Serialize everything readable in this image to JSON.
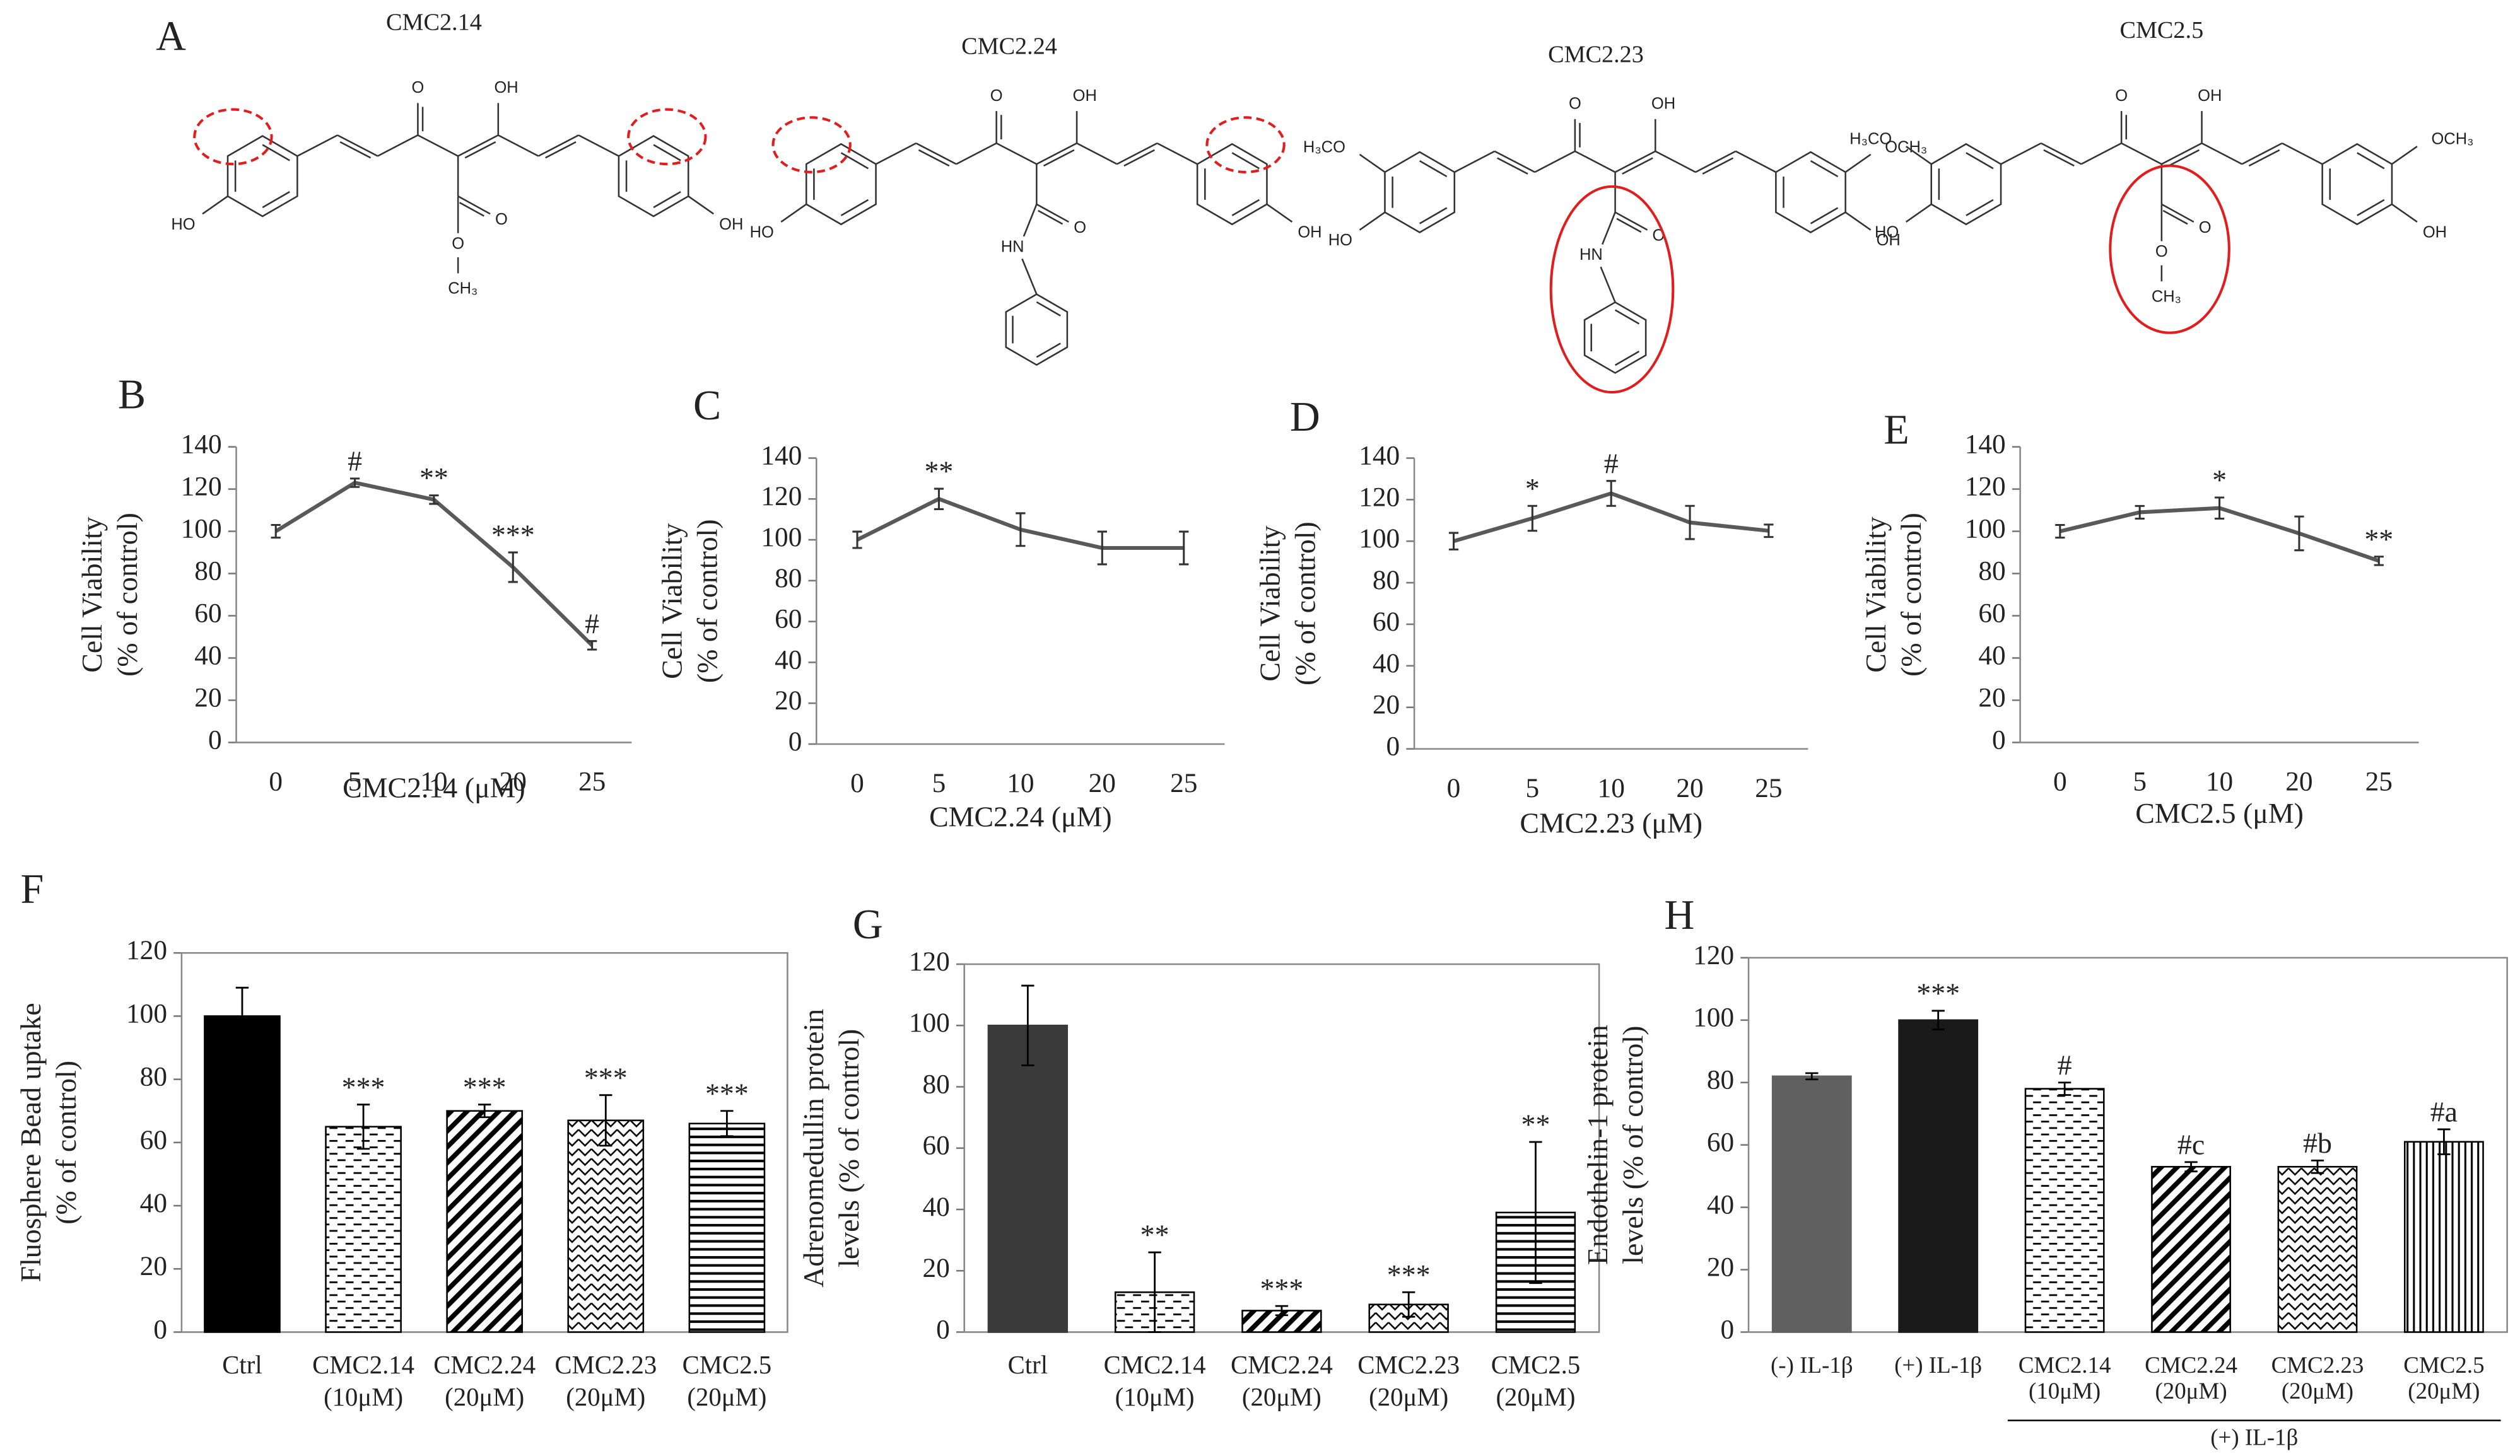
{
  "structures": {
    "letter": "A",
    "items": [
      {
        "name": "CMC2.14",
        "atoms": [
          "O",
          "OH",
          "HO",
          "OH",
          "O",
          "O",
          "CH₃"
        ]
      },
      {
        "name": "CMC2.24",
        "atoms": [
          "O",
          "OH",
          "HO",
          "OH",
          "O",
          "HN"
        ]
      },
      {
        "name": "CMC2.23",
        "atoms": [
          "O",
          "OH",
          "HO",
          "OH",
          "O",
          "HN",
          "H₃CO",
          "OCH₃"
        ]
      },
      {
        "name": "CMC2.5",
        "atoms": [
          "O",
          "OH",
          "HO",
          "OH",
          "O",
          "O",
          "CH₃",
          "H₃CO",
          "OCH₃"
        ]
      }
    ]
  },
  "chart_data": [
    {
      "type": "line",
      "panel": "B",
      "ylabel": [
        "Cell Viability",
        "(% of control)"
      ],
      "xlabel": "CMC2.14 (μM)",
      "categories": [
        "0",
        "5",
        "10",
        "20",
        "25"
      ],
      "series": [
        {
          "color": "#595959",
          "values": [
            100,
            123,
            115,
            83,
            46
          ],
          "errors": [
            3,
            2,
            2,
            7,
            2
          ],
          "significance": [
            null,
            "#",
            "**",
            "***",
            "#"
          ]
        }
      ],
      "ylim": [
        0,
        140
      ],
      "yticks": [
        0,
        20,
        40,
        60,
        80,
        100,
        120,
        140
      ]
    },
    {
      "type": "line",
      "panel": "C",
      "ylabel": [
        "Cell Viability",
        "(% of control)"
      ],
      "xlabel": "CMC2.24 (μM)",
      "categories": [
        "0",
        "5",
        "10",
        "20",
        "25"
      ],
      "series": [
        {
          "color": "#595959",
          "values": [
            100,
            120,
            105,
            96,
            96
          ],
          "errors": [
            4,
            5,
            8,
            8,
            8
          ],
          "significance": [
            null,
            "**",
            null,
            null,
            null
          ]
        }
      ],
      "ylim": [
        0,
        140
      ],
      "yticks": [
        0,
        20,
        40,
        60,
        80,
        100,
        120,
        140
      ]
    },
    {
      "type": "line",
      "panel": "D",
      "ylabel": [
        "Cell Viability",
        "(% of control)"
      ],
      "xlabel": "CMC2.23 (μM)",
      "categories": [
        "0",
        "5",
        "10",
        "20",
        "25"
      ],
      "series": [
        {
          "color": "#595959",
          "values": [
            100,
            111,
            123,
            109,
            105
          ],
          "errors": [
            4,
            6,
            6,
            8,
            3
          ],
          "significance": [
            null,
            "*",
            "#",
            null,
            null
          ]
        }
      ],
      "ylim": [
        0,
        140
      ],
      "yticks": [
        0,
        20,
        40,
        60,
        80,
        100,
        120,
        140
      ]
    },
    {
      "type": "line",
      "panel": "E",
      "ylabel": [
        "Cell Viability",
        "(% of control)"
      ],
      "xlabel": "CMC2.5 (μM)",
      "categories": [
        "0",
        "5",
        "10",
        "20",
        "25"
      ],
      "series": [
        {
          "color": "#595959",
          "values": [
            100,
            109,
            111,
            99,
            86
          ],
          "errors": [
            3,
            3,
            5,
            8,
            2
          ],
          "significance": [
            null,
            null,
            "*",
            null,
            "**"
          ]
        }
      ],
      "ylim": [
        0,
        140
      ],
      "yticks": [
        0,
        20,
        40,
        60,
        80,
        100,
        120,
        140
      ]
    },
    {
      "type": "bar",
      "panel": "F",
      "ylabel": [
        "Fluosphere Bead uptake",
        "(% of control)"
      ],
      "categories": [
        [
          "Ctrl"
        ],
        [
          "CMC2.14",
          "(10μM)"
        ],
        [
          "CMC2.24",
          "(20μM)"
        ],
        [
          "CMC2.23",
          "(20μM)"
        ],
        [
          "CMC2.5",
          "(20μM)"
        ]
      ],
      "series": [
        {
          "values": [
            100,
            65,
            70,
            67,
            66
          ],
          "errors": [
            9,
            7,
            2,
            8,
            4
          ],
          "significance": [
            null,
            "***",
            "***",
            "***",
            "***"
          ],
          "colors": [
            "#000000",
            "#000000",
            "#000000",
            "#000000",
            "#000000"
          ],
          "patterns": [
            "solid",
            "dashes",
            "diagonal",
            "zigzag",
            "horizontal"
          ]
        }
      ],
      "ylim": [
        0,
        120
      ],
      "yticks": [
        0,
        20,
        40,
        60,
        80,
        100,
        120
      ],
      "frame": true
    },
    {
      "type": "bar",
      "panel": "G",
      "ylabel": [
        "Adrenomedullin  protein",
        "levels  (% of control)"
      ],
      "categories": [
        [
          "Ctrl"
        ],
        [
          "CMC2.14",
          "(10μM)"
        ],
        [
          "CMC2.24",
          "(20μM)"
        ],
        [
          "CMC2.23",
          "(20μM)"
        ],
        [
          "CMC2.5",
          "(20μM)"
        ]
      ],
      "series": [
        {
          "values": [
            100,
            13,
            7,
            9,
            39
          ],
          "errors": [
            13,
            13,
            1.5,
            4,
            23
          ],
          "significance": [
            null,
            "**",
            "***",
            "***",
            "**"
          ],
          "colors": [
            "#3a3a3a",
            "#000000",
            "#000000",
            "#000000",
            "#000000"
          ],
          "patterns": [
            "solid",
            "dashes",
            "diagonal",
            "zigzag",
            "horizontal"
          ]
        }
      ],
      "ylim": [
        0,
        120
      ],
      "yticks": [
        0,
        20,
        40,
        60,
        80,
        100,
        120
      ],
      "frame": true
    },
    {
      "type": "bar",
      "panel": "H",
      "ylabel": [
        "Endothelin-1  protein",
        "levels  (% of control)"
      ],
      "categories": [
        [
          "(-) IL-1β"
        ],
        [
          "(+) IL-1β"
        ],
        [
          "CMC2.14",
          "(10μM)"
        ],
        [
          "CMC2.24",
          "(20μM)"
        ],
        [
          "CMC2.23",
          "(20μM)"
        ],
        [
          "CMC2.5",
          "(20μM)"
        ]
      ],
      "series": [
        {
          "values": [
            82,
            100,
            78,
            53,
            53,
            61
          ],
          "errors": [
            1,
            3,
            2,
            1.5,
            2,
            4
          ],
          "significance": [
            null,
            "***",
            "#",
            "#c",
            "#b",
            "#a"
          ],
          "colors": [
            "#606060",
            "#1a1a1a",
            "#000000",
            "#000000",
            "#000000",
            "#000000"
          ],
          "patterns": [
            "solid",
            "solid",
            "dashes",
            "diagonal",
            "zigzag",
            "vertical"
          ]
        }
      ],
      "ylim": [
        0,
        120
      ],
      "yticks": [
        0,
        20,
        40,
        60,
        80,
        100,
        120
      ],
      "frame": true,
      "group_label": "(+) IL-1β",
      "group_span": [
        2,
        5
      ]
    }
  ]
}
